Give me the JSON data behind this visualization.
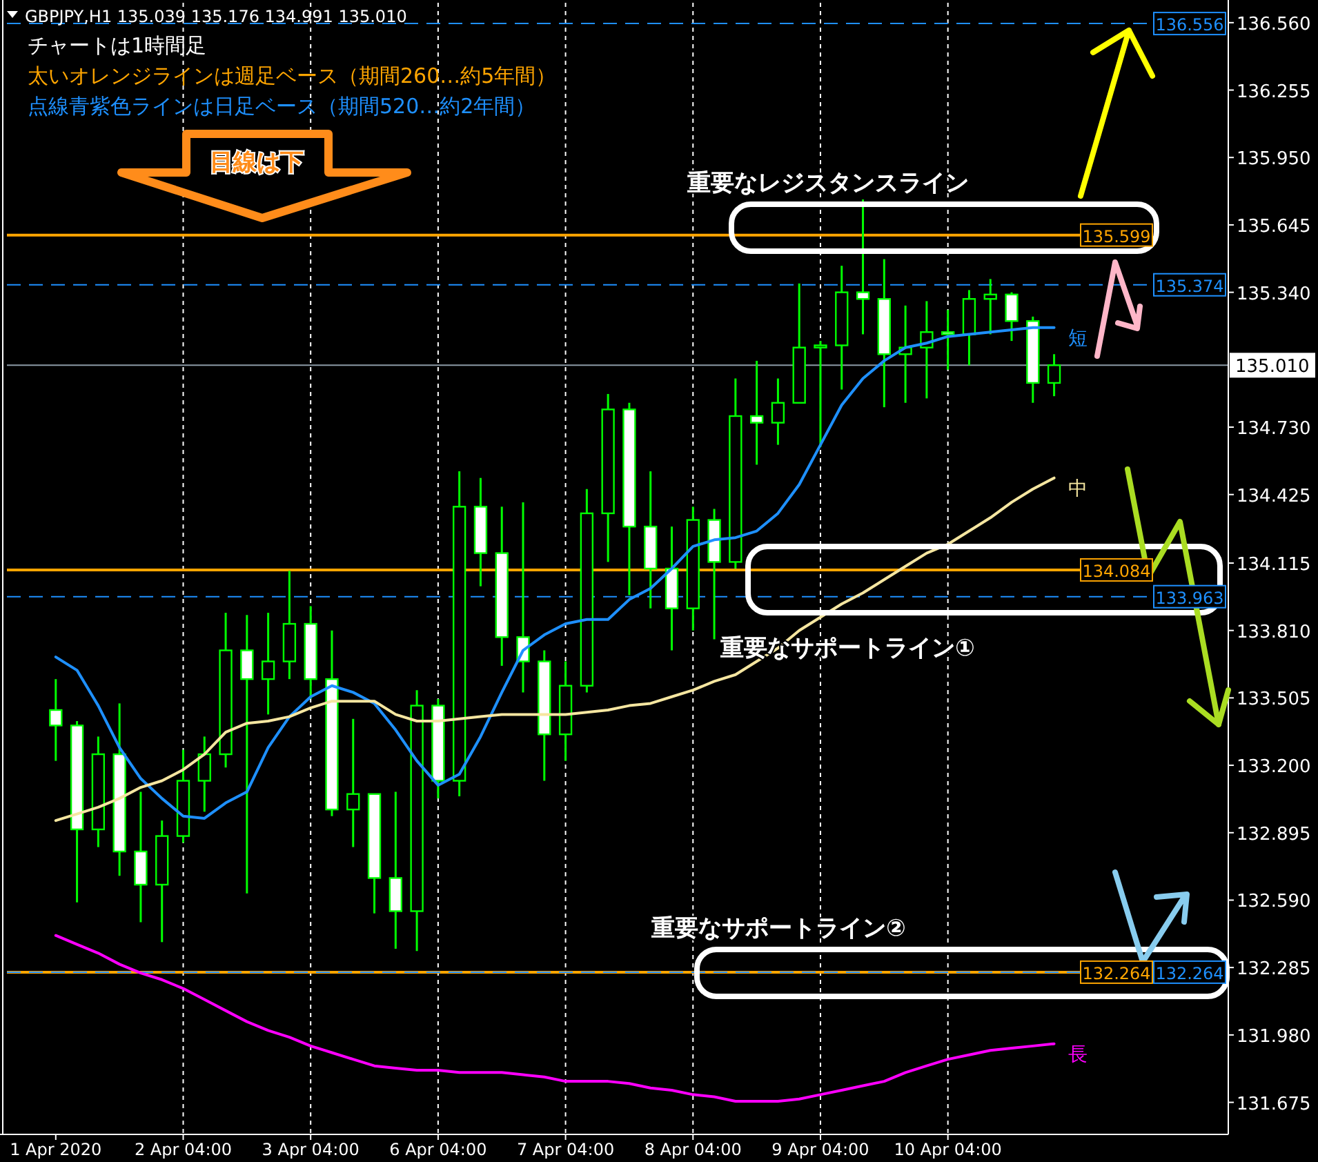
{
  "chart_data": {
    "type": "candlestick",
    "title": "GBPJPY,H1  135.039 135.176 134.991 135.010",
    "categories": [
      "1 Apr 2020",
      null,
      null,
      null,
      null,
      null,
      "2 Apr 04:00",
      null,
      null,
      null,
      null,
      null,
      "3 Apr 04:00",
      null,
      null,
      null,
      null,
      null,
      "6 Apr 04:00",
      null,
      null,
      null,
      null,
      null,
      "7 Apr 04:00",
      null,
      null,
      null,
      null,
      null,
      "8 Apr 04:00",
      null,
      null,
      null,
      null,
      null,
      "9 Apr 04:00",
      null,
      null,
      null,
      null,
      null,
      "10 Apr 04:00",
      null,
      null,
      null,
      null,
      null
    ],
    "color": "#00ff00",
    "ohlc": [
      [
        133.45,
        133.59,
        133.22,
        133.38
      ],
      [
        133.38,
        133.4,
        132.58,
        132.91
      ],
      [
        132.91,
        133.33,
        132.83,
        133.25
      ],
      [
        133.25,
        133.48,
        132.7,
        132.81
      ],
      [
        132.81,
        133.08,
        132.49,
        132.66
      ],
      [
        132.66,
        132.95,
        132.4,
        132.88
      ],
      [
        132.88,
        133.27,
        132.85,
        133.13
      ],
      [
        133.13,
        133.33,
        132.99,
        133.25
      ],
      [
        133.25,
        133.89,
        133.19,
        133.72
      ],
      [
        133.72,
        133.88,
        132.62,
        133.59
      ],
      [
        133.59,
        133.89,
        133.43,
        133.67
      ],
      [
        133.67,
        134.08,
        133.59,
        133.84
      ],
      [
        133.84,
        133.92,
        133.5,
        133.59
      ],
      [
        133.59,
        133.81,
        132.97,
        133.0
      ],
      [
        133.0,
        133.41,
        132.83,
        133.07
      ],
      [
        133.07,
        133.07,
        132.53,
        132.69
      ],
      [
        132.69,
        133.08,
        132.37,
        132.54
      ],
      [
        132.54,
        133.54,
        132.36,
        133.47
      ],
      [
        133.47,
        133.5,
        133.05,
        133.13
      ],
      [
        133.13,
        134.53,
        133.06,
        134.37
      ],
      [
        134.37,
        134.5,
        134.01,
        134.16
      ],
      [
        134.16,
        134.37,
        133.65,
        133.78
      ],
      [
        133.78,
        134.39,
        133.53,
        133.67
      ],
      [
        133.67,
        133.72,
        133.13,
        133.34
      ],
      [
        133.34,
        133.67,
        133.22,
        133.56
      ],
      [
        133.56,
        134.45,
        133.53,
        134.34
      ],
      [
        134.34,
        134.88,
        134.12,
        134.81
      ],
      [
        134.81,
        134.84,
        133.97,
        134.28
      ],
      [
        134.28,
        134.53,
        133.91,
        134.09
      ],
      [
        134.09,
        134.28,
        133.72,
        133.91
      ],
      [
        133.91,
        134.37,
        133.81,
        134.31
      ],
      [
        134.31,
        134.36,
        133.77,
        134.12
      ],
      [
        134.12,
        134.95,
        134.09,
        134.78
      ],
      [
        134.78,
        135.03,
        134.56,
        134.75
      ],
      [
        134.75,
        134.95,
        134.65,
        134.84
      ],
      [
        134.84,
        135.38,
        134.84,
        135.09
      ],
      [
        135.09,
        135.12,
        134.64,
        135.1
      ],
      [
        135.1,
        135.46,
        134.9,
        135.34
      ],
      [
        135.34,
        135.76,
        135.15,
        135.31
      ],
      [
        135.31,
        135.49,
        134.82,
        135.06
      ],
      [
        135.06,
        135.28,
        134.84,
        135.09
      ],
      [
        135.09,
        135.3,
        134.86,
        135.16
      ],
      [
        135.16,
        135.26,
        134.99,
        135.15
      ],
      [
        135.15,
        135.35,
        135.01,
        135.31
      ],
      [
        135.31,
        135.4,
        135.15,
        135.33
      ],
      [
        135.33,
        135.34,
        135.12,
        135.21
      ],
      [
        135.21,
        135.23,
        134.84,
        134.93
      ],
      [
        134.93,
        135.06,
        134.87,
        135.01
      ]
    ],
    "series": [
      {
        "type": "line",
        "name": "短",
        "color": "#1e90ff",
        "values": [
          133.69,
          133.63,
          133.47,
          133.28,
          133.14,
          133.05,
          132.97,
          132.96,
          133.03,
          133.08,
          133.28,
          133.42,
          133.51,
          133.56,
          133.53,
          133.48,
          133.36,
          133.22,
          133.11,
          133.16,
          133.33,
          133.53,
          133.72,
          133.79,
          133.84,
          133.86,
          133.86,
          133.95,
          134.0,
          134.09,
          134.19,
          134.22,
          134.23,
          134.26,
          134.34,
          134.47,
          134.65,
          134.83,
          134.95,
          135.03,
          135.09,
          135.11,
          135.14,
          135.15,
          135.16,
          135.17,
          135.18,
          135.18
        ]
      },
      {
        "type": "line",
        "name": "中",
        "color": "#f5e6a0",
        "values": [
          132.95,
          132.98,
          133.01,
          133.05,
          133.1,
          133.13,
          133.18,
          133.25,
          133.35,
          133.39,
          133.4,
          133.42,
          133.46,
          133.49,
          133.49,
          133.49,
          133.43,
          133.4,
          133.4,
          133.41,
          133.42,
          133.43,
          133.43,
          133.43,
          133.43,
          133.44,
          133.45,
          133.47,
          133.48,
          133.51,
          133.54,
          133.58,
          133.61,
          133.67,
          133.73,
          133.81,
          133.87,
          133.93,
          133.98,
          134.04,
          134.1,
          134.16,
          134.2,
          134.26,
          134.32,
          134.39,
          134.45,
          134.5
        ]
      },
      {
        "type": "line",
        "name": "長",
        "color": "#ff00ff",
        "values": [
          132.43,
          132.39,
          132.35,
          132.3,
          132.26,
          132.23,
          132.19,
          132.14,
          132.09,
          132.04,
          132.0,
          131.97,
          131.93,
          131.9,
          131.87,
          131.84,
          131.83,
          131.82,
          131.82,
          131.81,
          131.81,
          131.81,
          131.8,
          131.79,
          131.77,
          131.77,
          131.77,
          131.76,
          131.74,
          131.73,
          131.71,
          131.7,
          131.68,
          131.68,
          131.68,
          131.69,
          131.71,
          131.73,
          131.75,
          131.77,
          131.81,
          131.84,
          131.87,
          131.89,
          131.91,
          131.92,
          131.93,
          131.94
        ]
      }
    ],
    "ylim": [
      131.53,
      136.65
    ],
    "yticks": [
      {
        "value": 131.675,
        "label": "131.675"
      },
      {
        "value": 131.98,
        "label": "131.980"
      },
      {
        "value": 132.285,
        "label": "132.285"
      },
      {
        "value": 132.59,
        "label": "132.590"
      },
      {
        "value": 132.895,
        "label": "132.895"
      },
      {
        "value": 133.2,
        "label": "133.200"
      },
      {
        "value": 133.505,
        "label": "133.505"
      },
      {
        "value": 133.81,
        "label": "133.810"
      },
      {
        "value": 134.115,
        "label": "134.115"
      },
      {
        "value": 134.425,
        "label": "134.425"
      },
      {
        "value": 134.73,
        "label": "134.730"
      },
      {
        "value": 135.34,
        "label": "135.340"
      },
      {
        "value": 135.645,
        "label": "135.645"
      },
      {
        "value": 135.95,
        "label": "135.950"
      },
      {
        "value": 136.255,
        "label": "136.255"
      },
      {
        "value": 136.56,
        "label": "136.560"
      }
    ],
    "grid": "x",
    "ref_lines": [
      {
        "axis": "y",
        "value": 136.556,
        "label": "136.556",
        "color": "#1e90ff",
        "line_style": "dashed"
      },
      {
        "axis": "y",
        "value": 135.599,
        "label": "135.599",
        "color": "#ffa500",
        "line_style": "solid"
      },
      {
        "axis": "y",
        "value": 135.374,
        "label": "135.374",
        "color": "#1e90ff",
        "line_style": "dashed"
      },
      {
        "axis": "y",
        "value": 135.01,
        "label": "135.010",
        "color": "#8c9aa6",
        "line_style": "solid"
      },
      {
        "axis": "y",
        "value": 134.084,
        "label": "134.084",
        "color": "#ffa500",
        "line_style": "solid"
      },
      {
        "axis": "y",
        "value": 133.963,
        "label": "133.963",
        "color": "#1e90ff",
        "line_style": "dashed"
      },
      {
        "axis": "y",
        "value": 132.264,
        "label": "132.264",
        "color": "#ffa500",
        "line_style": "solid"
      },
      {
        "axis": "y",
        "value": 132.264,
        "label": "132.264",
        "color": "#1e90ff",
        "line_style": "dashed"
      }
    ],
    "annotations": [
      "チャートは1時間足",
      "太いオレンジラインは週足ベース（期間260…約5年間）",
      "点線青紫色ラインは日足ベース（期間520…約2年間）",
      "目線は下",
      "重要なレジスタンスライン",
      "重要なサポートライン①",
      "重要なサポートライン②"
    ]
  }
}
